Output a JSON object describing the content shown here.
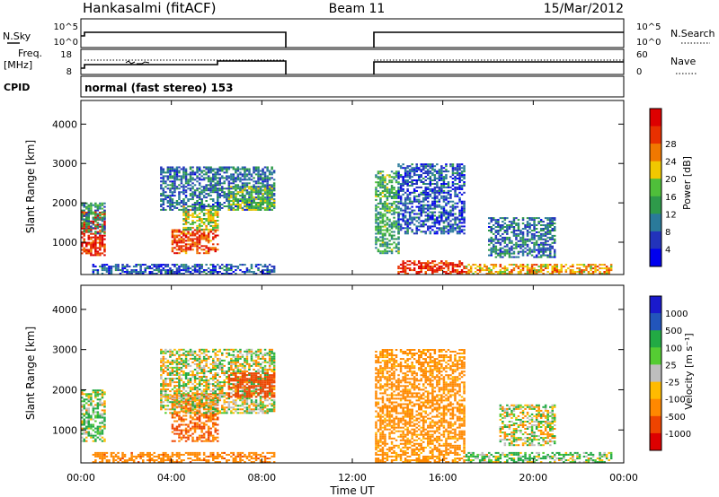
{
  "header": {
    "station": "Hankasalmi (fitACF)",
    "beam": "Beam 11",
    "date": "15/Mar/2012"
  },
  "panels": {
    "nsky": {
      "label": "N.Sky",
      "left_ticks": [
        "10^5",
        "10^0"
      ],
      "right_ticks": [
        "10^5",
        "10^0"
      ],
      "right_label": "N.Search"
    },
    "freq": {
      "label_line1": "Freq.",
      "label_line2": "[MHz]",
      "left_ticks": [
        "18",
        "8"
      ],
      "right_ticks": [
        "60",
        "0"
      ],
      "right_label": "Nave"
    },
    "cpid": {
      "label": "CPID",
      "value": "normal (fast stereo) 153"
    }
  },
  "colors": {
    "power": [
      "#0000ee",
      "#2233bb",
      "#2a7a9a",
      "#2e9a4a",
      "#4fbf3a",
      "#f0c800",
      "#f07800",
      "#e83000",
      "#dd0000"
    ],
    "velocity": [
      "#dd0000",
      "#ee4400",
      "#ff8800",
      "#ffbb00",
      "#bebebe",
      "#55cc33",
      "#22aa44",
      "#2255bb",
      "#1a1acc"
    ]
  },
  "chart_data": [
    {
      "type": "heatmap",
      "name": "power",
      "xlabel": "",
      "ylabel": "Slant Range [km]",
      "xlim": [
        0,
        24
      ],
      "ylim": [
        180,
        4600
      ],
      "yticks": [
        "1000",
        "2000",
        "3000",
        "4000"
      ],
      "colorbar": {
        "label": "Power [dB]",
        "ticks": [
          "4",
          "8",
          "12",
          "16",
          "20",
          "24",
          "28"
        ]
      },
      "data_gap_ut": [
        9,
        13
      ],
      "regions": [
        {
          "ut": [
            0.0,
            1.0
          ],
          "km": [
            650,
            1800
          ],
          "db": 28
        },
        {
          "ut": [
            0.0,
            1.0
          ],
          "km": [
            1200,
            2000
          ],
          "db": 12
        },
        {
          "ut": [
            0.5,
            8.5
          ],
          "km": [
            180,
            420
          ],
          "db": 8
        },
        {
          "ut": [
            4.0,
            6.0
          ],
          "km": [
            700,
            1300
          ],
          "db": 26
        },
        {
          "ut": [
            4.5,
            6.0
          ],
          "km": [
            1300,
            1900
          ],
          "db": 18
        },
        {
          "ut": [
            3.5,
            8.5
          ],
          "km": [
            1800,
            2900
          ],
          "db": 10
        },
        {
          "ut": [
            6.5,
            8.5
          ],
          "km": [
            1800,
            2400
          ],
          "db": 16
        },
        {
          "ut": [
            13.0,
            14.0
          ],
          "km": [
            700,
            2800
          ],
          "db": 14
        },
        {
          "ut": [
            14.0,
            17.0
          ],
          "km": [
            180,
            500
          ],
          "db": 28
        },
        {
          "ut": [
            14.0,
            17.0
          ],
          "km": [
            1200,
            3000
          ],
          "db": 8
        },
        {
          "ut": [
            17.0,
            23.5
          ],
          "km": [
            180,
            450
          ],
          "db": 22
        },
        {
          "ut": [
            18.0,
            21.0
          ],
          "km": [
            600,
            1600
          ],
          "db": 10
        }
      ]
    },
    {
      "type": "heatmap",
      "name": "velocity",
      "xlabel": "Time UT",
      "ylabel": "Slant Range [km]",
      "xlim": [
        0,
        24
      ],
      "ylim": [
        180,
        4600
      ],
      "xticks": [
        "00:00",
        "04:00",
        "08:00",
        "12:00",
        "16:00",
        "20:00",
        "00:00"
      ],
      "yticks": [
        "1000",
        "2000",
        "3000",
        "4000"
      ],
      "colorbar": {
        "label": "Velocity [m s⁻¹]",
        "ticks": [
          "1000",
          "500",
          "100",
          "25",
          "-25",
          "-100",
          "-500",
          "-1000"
        ]
      },
      "data_gap_ut": [
        9,
        13
      ],
      "regions": [
        {
          "ut": [
            0.0,
            1.0
          ],
          "km": [
            700,
            2000
          ],
          "vel": 50
        },
        {
          "ut": [
            0.5,
            8.5
          ],
          "km": [
            180,
            420
          ],
          "vel": -200
        },
        {
          "ut": [
            4.0,
            6.0
          ],
          "km": [
            700,
            1900
          ],
          "vel": -300
        },
        {
          "ut": [
            3.5,
            8.5
          ],
          "km": [
            1400,
            3000
          ],
          "vel": 0
        },
        {
          "ut": [
            6.5,
            8.5
          ],
          "km": [
            1800,
            2400
          ],
          "vel": -500
        },
        {
          "ut": [
            13.0,
            17.0
          ],
          "km": [
            180,
            3000
          ],
          "vel": -150
        },
        {
          "ut": [
            17.0,
            23.5
          ],
          "km": [
            180,
            450
          ],
          "vel": 60
        },
        {
          "ut": [
            18.5,
            21.0
          ],
          "km": [
            600,
            1600
          ],
          "vel": 0
        }
      ]
    }
  ]
}
